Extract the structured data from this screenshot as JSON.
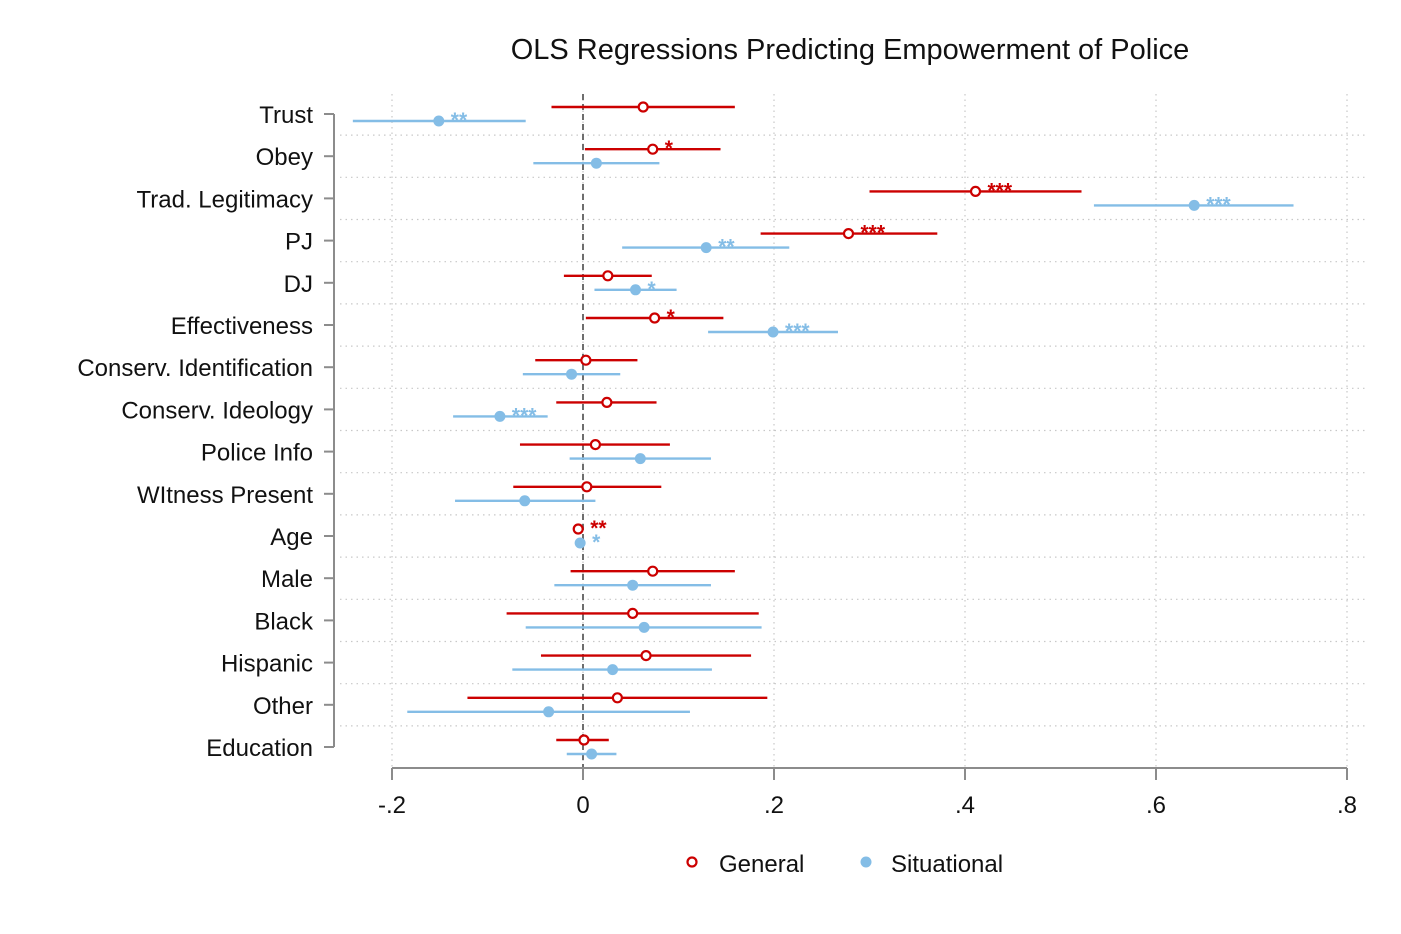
{
  "chart_data": {
    "type": "coefficient-plot",
    "title": "OLS Regressions Predicting Empowerment of Police",
    "xlim": [
      -0.2,
      0.8
    ],
    "x_ticks": [
      -0.2,
      0,
      0.2,
      0.4,
      0.6,
      0.8
    ],
    "x_tick_labels": [
      "-.2",
      "0",
      ".2",
      ".4",
      ".6",
      ".8"
    ],
    "reference_line": 0,
    "grid": true,
    "legend_position": "bottom",
    "categories": [
      "Trust",
      "Obey",
      "Trad. Legitimacy",
      "PJ",
      "DJ",
      "Effectiveness",
      "Conserv. Identification",
      "Conserv. Ideology",
      "Police Info",
      "WItness Present",
      "Age",
      "Male",
      "Black",
      "Hispanic",
      "Other",
      "Education"
    ],
    "series": [
      {
        "name": "General",
        "color": "#cc0000",
        "marker": "hollow-circle",
        "estimates": [
          0.063,
          0.073,
          0.411,
          0.278,
          0.026,
          0.075,
          0.003,
          0.025,
          0.013,
          0.004,
          -0.005,
          0.073,
          0.052,
          0.066,
          0.036,
          0.001
        ],
        "ci_low": [
          -0.033,
          0.002,
          0.3,
          0.186,
          -0.02,
          0.003,
          -0.05,
          -0.028,
          -0.066,
          -0.073,
          -0.005,
          -0.013,
          -0.08,
          -0.044,
          -0.121,
          -0.028
        ],
        "ci_high": [
          0.159,
          0.144,
          0.522,
          0.371,
          0.072,
          0.147,
          0.057,
          0.077,
          0.091,
          0.082,
          -0.005,
          0.159,
          0.184,
          0.176,
          0.193,
          0.027
        ],
        "significance": [
          "",
          "*",
          "***",
          "***",
          "",
          "*",
          "",
          "",
          "",
          "",
          "**",
          "",
          "",
          "",
          "",
          ""
        ]
      },
      {
        "name": "Situational",
        "color": "#84bde6",
        "marker": "filled-circle",
        "estimates": [
          -0.151,
          0.014,
          0.64,
          0.129,
          0.055,
          0.199,
          -0.012,
          -0.087,
          0.06,
          -0.061,
          -0.003,
          0.052,
          0.064,
          0.031,
          -0.036,
          0.009
        ],
        "ci_low": [
          -0.241,
          -0.052,
          0.535,
          0.041,
          0.012,
          0.131,
          -0.063,
          -0.136,
          -0.014,
          -0.134,
          -0.003,
          -0.03,
          -0.06,
          -0.074,
          -0.184,
          -0.017
        ],
        "ci_high": [
          -0.06,
          0.08,
          0.744,
          0.216,
          0.098,
          0.267,
          0.039,
          -0.037,
          0.134,
          0.013,
          -0.003,
          0.134,
          0.187,
          0.135,
          0.112,
          0.035
        ],
        "significance": [
          "**",
          "",
          "***",
          "**",
          "*",
          "***",
          "",
          "***",
          "",
          "",
          "*",
          "",
          "",
          "",
          "",
          ""
        ]
      }
    ]
  }
}
